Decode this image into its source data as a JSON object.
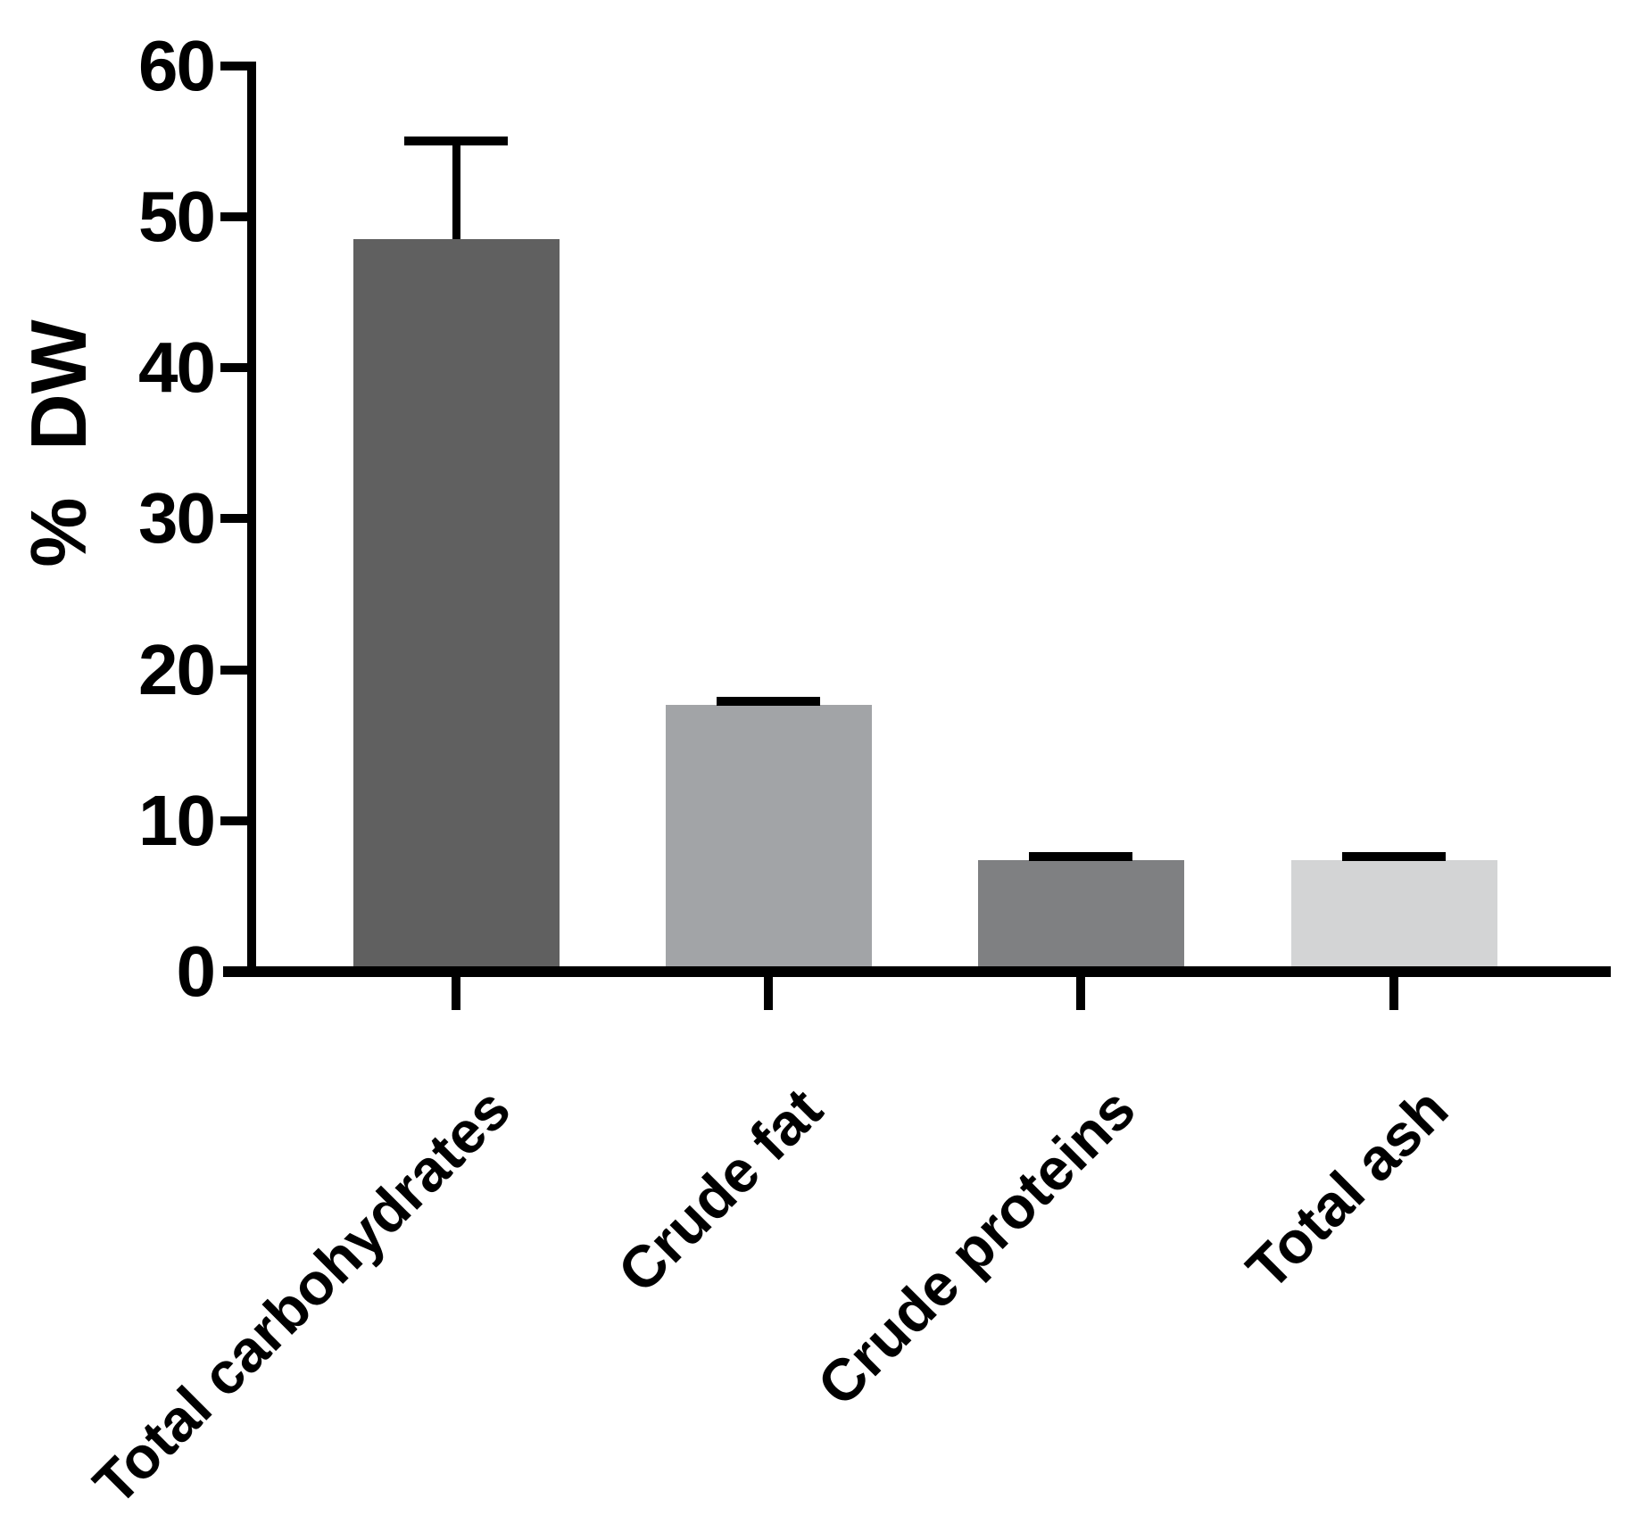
{
  "chart_data": {
    "type": "bar",
    "title": "",
    "ylabel": "% DW",
    "xlabel": "",
    "ylim": [
      0,
      60
    ],
    "yticks": [
      0,
      10,
      20,
      30,
      40,
      50,
      60
    ],
    "categories": [
      "Total carbohydrates",
      "Crude fat",
      "Crude proteins",
      "Total ash"
    ],
    "values": [
      48.5,
      17.7,
      7.4,
      7.4
    ],
    "errors_plus": [
      6.5,
      0.2,
      0.2,
      0.2
    ],
    "bar_colors": [
      "#606060",
      "#a2a4a7",
      "#7f8082",
      "#d3d4d5"
    ],
    "error_bar_color": "#000000",
    "axis_color": "#000000",
    "background": "#ffffff",
    "grid": false,
    "legend": null,
    "x_label_rotation_deg": 45
  }
}
